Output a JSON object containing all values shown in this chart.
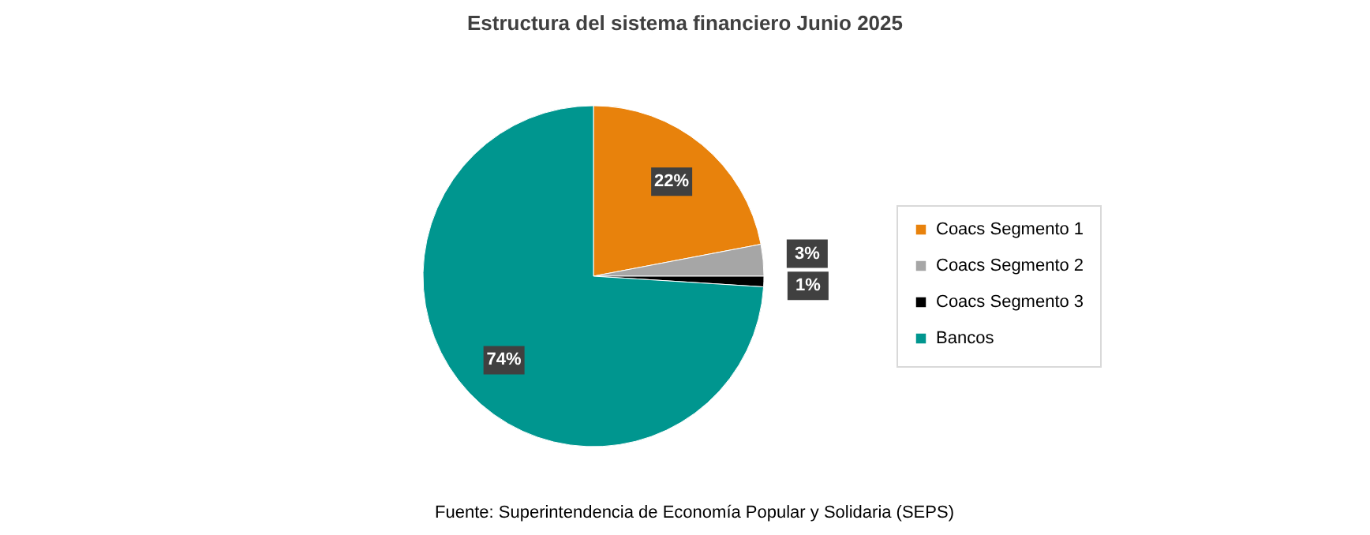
{
  "chart_data": {
    "type": "pie",
    "title": "Estructura del sistema financiero Junio 2025",
    "categories": [
      "Coacs Segmento 1",
      "Coacs Segmento 2",
      "Coacs Segmento 3",
      "Bancos"
    ],
    "values": [
      22,
      3,
      1,
      74
    ],
    "colors": [
      "#e8820c",
      "#a6a6a6",
      "#000000",
      "#00968f"
    ],
    "value_labels": [
      "22%",
      "3%",
      "1%",
      "74%"
    ],
    "legend": "right",
    "annotations": [
      "Fuente: Superintendencia de Economía Popular y Solidaria (SEPS)"
    ]
  }
}
